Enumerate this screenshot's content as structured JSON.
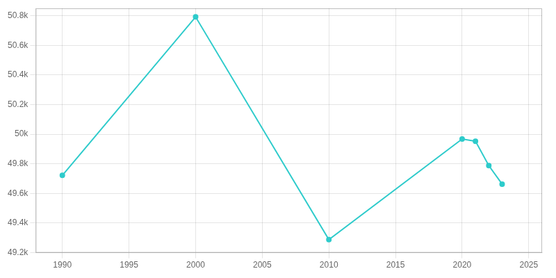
{
  "chart_data": {
    "type": "line",
    "x": [
      1990,
      2000,
      2010,
      2020,
      2021,
      2022,
      2023
    ],
    "values": [
      49722,
      50792,
      49288,
      49968,
      49953,
      49788,
      49663
    ],
    "color": "#2ECBCB",
    "marker": "circle",
    "xlim": [
      1988,
      2026
    ],
    "xticks": [
      1990,
      1995,
      2000,
      2005,
      2010,
      2015,
      2020,
      2025
    ],
    "ylim": [
      49200,
      50850
    ],
    "yticks": [
      {
        "value": 49200,
        "label": "49.2k"
      },
      {
        "value": 49400,
        "label": "49.4k"
      },
      {
        "value": 49600,
        "label": "49.6k"
      },
      {
        "value": 49800,
        "label": "49.8k"
      },
      {
        "value": 50000,
        "label": "50k"
      },
      {
        "value": 50200,
        "label": "50.2k"
      },
      {
        "value": 50400,
        "label": "50.4k"
      },
      {
        "value": 50600,
        "label": "50.6k"
      },
      {
        "value": 50800,
        "label": "50.8k"
      }
    ],
    "grid": true
  }
}
